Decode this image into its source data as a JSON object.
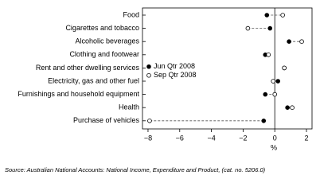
{
  "chart_data": {
    "type": "dot",
    "categories": [
      "Food",
      "Cigarettes and tobacco",
      "Alcoholic beverages",
      "Clothing and footwear",
      "Rent and other dwelling services",
      "Electricity, gas and other fuel",
      "Furnishings and household equipment",
      "Health",
      "Purchase of vehicles"
    ],
    "series": [
      {
        "name": "Jun Qtr 2008",
        "color": "#000000",
        "marker": "filled",
        "values": [
          -0.5,
          -0.3,
          0.9,
          -0.6,
          0.6,
          0.2,
          -0.6,
          0.8,
          -0.7
        ]
      },
      {
        "name": "Sep Qtr 2008",
        "color": "#000000",
        "marker": "open",
        "values": [
          0.5,
          -1.7,
          1.7,
          -0.4,
          0.6,
          -0.1,
          0.0,
          1.1,
          -7.9
        ]
      }
    ],
    "xlim": [
      -8.35,
      2.35
    ],
    "xticks": [
      {
        "value": -8,
        "label": "−8"
      },
      {
        "value": -6,
        "label": "−6"
      },
      {
        "value": -4,
        "label": "−4"
      },
      {
        "value": -2,
        "label": "−2"
      },
      0,
      2
    ],
    "x_label": "%",
    "legend": "left",
    "source": "Source: Australian National Accounts: National Income, Expenditure and Product, (cat. no. 5206.0)"
  }
}
